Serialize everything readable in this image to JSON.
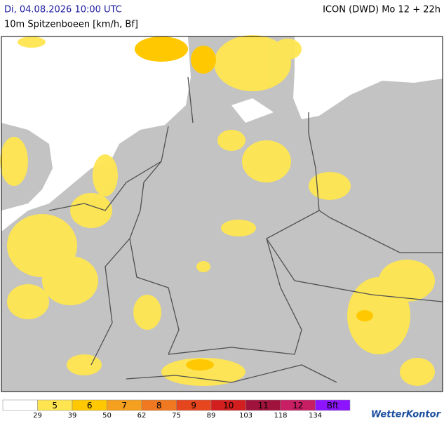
{
  "header": {
    "date": "Di, 04.08.2026 10:00 UTC",
    "model": "ICON (DWD) Mo 12 + 22h",
    "subtitle": "10m Spitzenboeen [km/h, Bf]"
  },
  "legend": {
    "items": [
      {
        "label": "",
        "color": "#ffffff"
      },
      {
        "label": "5",
        "color": "#ffe650"
      },
      {
        "label": "6",
        "color": "#ffc800"
      },
      {
        "label": "7",
        "color": "#f5a01e"
      },
      {
        "label": "8",
        "color": "#f07820"
      },
      {
        "label": "9",
        "color": "#e6461e"
      },
      {
        "label": "10",
        "color": "#d21e1e"
      },
      {
        "label": "11",
        "color": "#a0143c"
      },
      {
        "label": "12",
        "color": "#c81e64"
      },
      {
        "label": "Bft",
        "color": "#8c14ff"
      }
    ],
    "thresholds": [
      "29",
      "39",
      "50",
      "62",
      "75",
      "89",
      "103",
      "118",
      "134"
    ]
  },
  "brand": "WetterKontor"
}
